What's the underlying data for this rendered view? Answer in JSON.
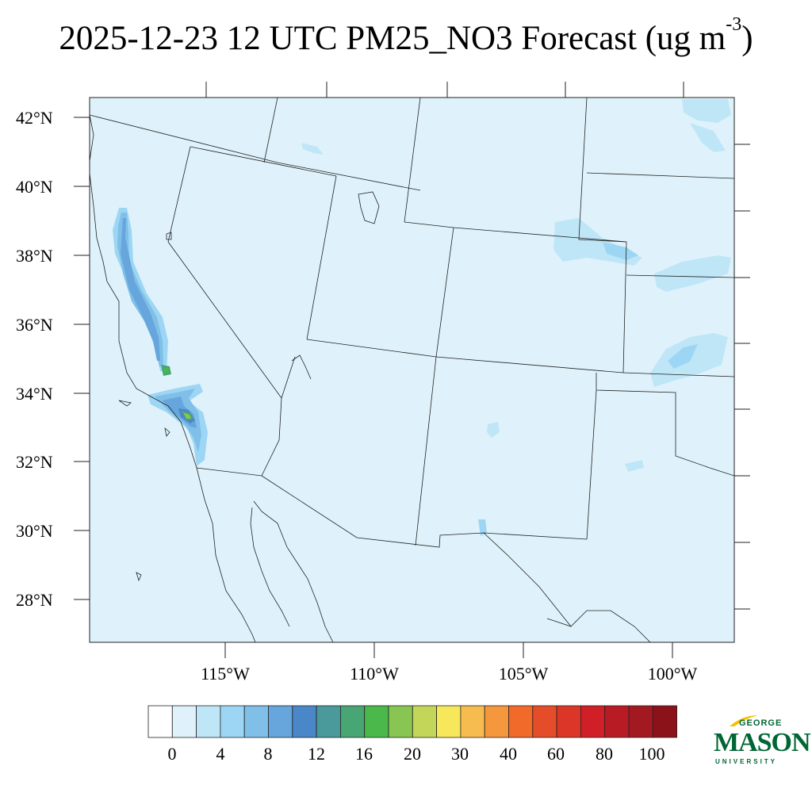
{
  "title": {
    "main": "2025-12-23 12 UTC PM25_NO3 Forecast (ug m",
    "exponent": "-3",
    "close": ")"
  },
  "map": {
    "lat_labels": [
      "42°N",
      "40°N",
      "38°N",
      "36°N",
      "34°N",
      "32°N",
      "30°N",
      "28°N"
    ],
    "lon_labels": [
      "115°W",
      "110°W",
      "105°W",
      "100°W"
    ],
    "background_color": "#dff2fb"
  },
  "colorbar": {
    "labels": [
      "0",
      "4",
      "8",
      "12",
      "16",
      "20",
      "30",
      "40",
      "60",
      "80",
      "100"
    ],
    "colors": [
      "#ffffff",
      "#dff2fb",
      "#bfe6f7",
      "#9dd6f4",
      "#7fbfe8",
      "#66a6dc",
      "#4a87c8",
      "#4a9a9c",
      "#48a574",
      "#4ab84a",
      "#88c552",
      "#c3d659",
      "#f6e85a",
      "#f7bc4f",
      "#f5973c",
      "#f26a2a",
      "#e54d2a",
      "#dc3628",
      "#d01f26",
      "#b81b24",
      "#a31922",
      "#8c1219"
    ]
  },
  "logo": {
    "line1": "GEORGE",
    "line2": "MASON",
    "line3": "UNIVERSITY",
    "color": "#006633",
    "accent": "#f2c200"
  }
}
